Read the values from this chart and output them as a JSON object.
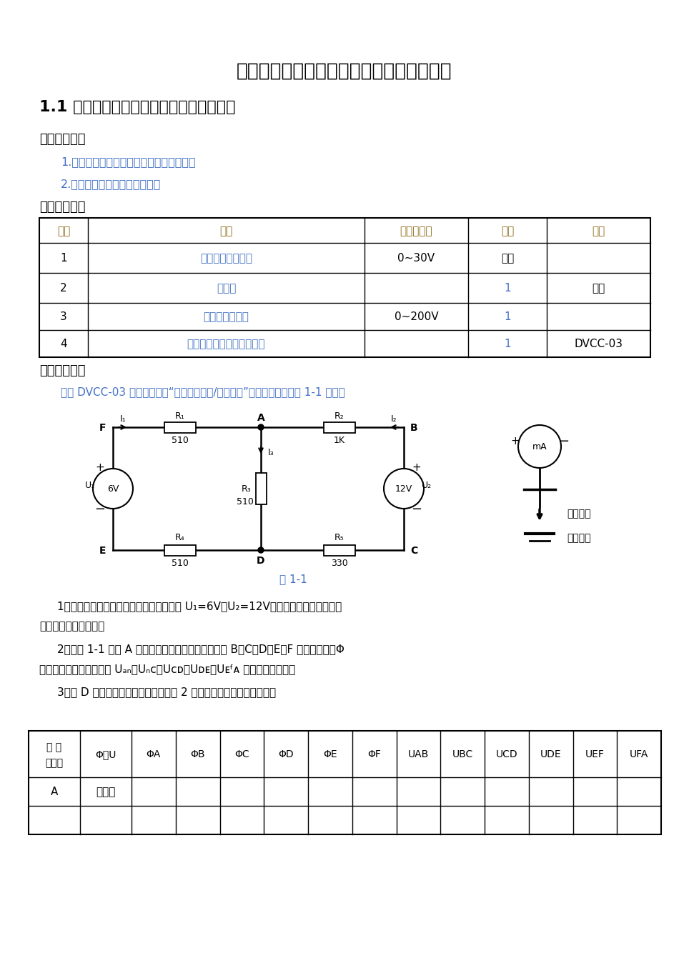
{
  "title": "实验一　电位、电压的测定及基尔霍夫定律",
  "subtitle": "1.1 电位、电压的测定及电路电位图的绘制",
  "section1": "一、实验目的",
  "item1": "1.验证电路中电位的相对性、电压的绝对性",
  "item2": "2.．掌握电路电位图的绘制方法",
  "section2": "二、实验设备",
  "table_headers": [
    "序号",
    "名称",
    "型号与规格",
    "数量",
    "备注"
  ],
  "table_rows": [
    [
      "1",
      "可调直流稳压电源",
      "0~30V",
      "双路",
      ""
    ],
    [
      "2",
      "万用表",
      "",
      "1",
      "自备"
    ],
    [
      "3",
      "直流数字电压表",
      "0~200V",
      "1",
      ""
    ],
    [
      "4",
      "电位、电压测定实验电路板",
      "",
      "1",
      "DVCC-03"
    ]
  ],
  "section3": "三、实验内山",
  "content_text": "利用 DVCC-03 实验挂笱上的“基尔霍夫定律/叠加原理”实验电路板，按图 1-1 接线。",
  "figure_label": "图 1-1",
  "para1": "1．分别将两路直流稳压电源接入电路，令 U₁=6V，U₂=12V。（先调准输出电压值，",
  "para1b": "再接入实验线路中。）",
  "para2": "2．以图 1-1 中的 A 点作为电位的参考点，分别测量 B、C、D、E、F 各点的电位值Φ",
  "para2b": "及相邻两点之间的电压值 Uₐₙ、Uₙᴄ、Uᴄᴅ、Uᴅᴇ、Uᴇᶠᴀ ，数据列于表中。",
  "para3": "3．以 D 点作为参考点，重复实验内山 2 的测量，测得数据列于表中。",
  "bg_color": "#ffffff",
  "text_color": "#000000",
  "title_color": "#000000",
  "blue_color": "#4472c4",
  "gold_color": "#8B6914",
  "bt_headers": [
    "电 位\n参考点",
    "Φ与U",
    "ΦA",
    "ΦB",
    "ΦC",
    "ΦD",
    "ΦE",
    "ΦF",
    "UAB",
    "UBC",
    "UCD",
    "UDE",
    "UEF",
    "UFA"
  ],
  "bt_row1_col0": "A",
  "bt_row1_col1": "计算值"
}
